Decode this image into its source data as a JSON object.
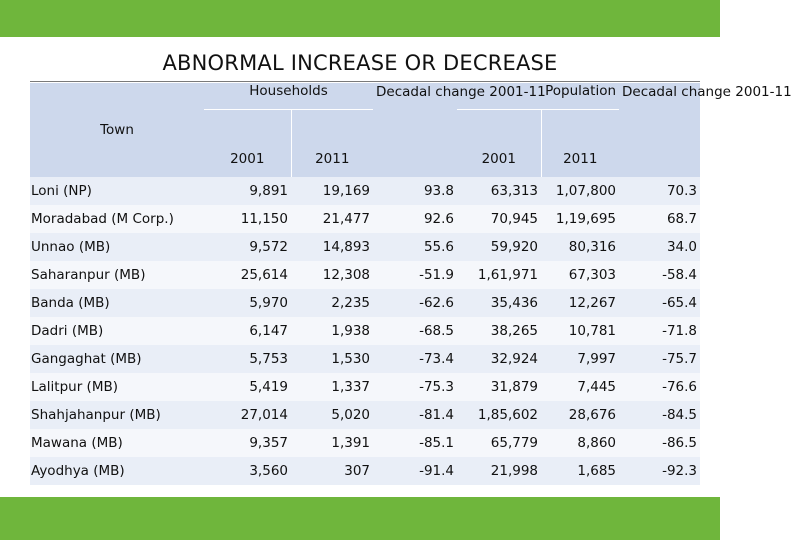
{
  "title": "ABNORMAL INCREASE OR DECREASE",
  "header": {
    "town": "Town",
    "households": "Households",
    "decadal_change": "Decadal change 2001-11",
    "population": "Population",
    "year_2001": "2001",
    "year_2011": "2011"
  },
  "rows": [
    {
      "town": "Loni (NP)",
      "hh_2001": "9,891",
      "hh_2011": "19,169",
      "hh_change": "93.8",
      "pop_2001": "63,313",
      "pop_2011": "1,07,800",
      "pop_change": "70.3"
    },
    {
      "town": "Moradabad (M Corp.)",
      "hh_2001": "11,150",
      "hh_2011": "21,477",
      "hh_change": "92.6",
      "pop_2001": "70,945",
      "pop_2011": "1,19,695",
      "pop_change": "68.7"
    },
    {
      "town": "Unnao (MB)",
      "hh_2001": "9,572",
      "hh_2011": "14,893",
      "hh_change": "55.6",
      "pop_2001": "59,920",
      "pop_2011": "80,316",
      "pop_change": "34.0"
    },
    {
      "town": "Saharanpur (MB)",
      "hh_2001": "25,614",
      "hh_2011": "12,308",
      "hh_change": "-51.9",
      "pop_2001": "1,61,971",
      "pop_2011": "67,303",
      "pop_change": "-58.4"
    },
    {
      "town": "Banda (MB)",
      "hh_2001": "5,970",
      "hh_2011": "2,235",
      "hh_change": "-62.6",
      "pop_2001": "35,436",
      "pop_2011": "12,267",
      "pop_change": "-65.4"
    },
    {
      "town": "Dadri (MB)",
      "hh_2001": "6,147",
      "hh_2011": "1,938",
      "hh_change": "-68.5",
      "pop_2001": "38,265",
      "pop_2011": "10,781",
      "pop_change": "-71.8"
    },
    {
      "town": "Gangaghat (MB)",
      "hh_2001": "5,753",
      "hh_2011": "1,530",
      "hh_change": "-73.4",
      "pop_2001": "32,924",
      "pop_2011": "7,997",
      "pop_change": "-75.7"
    },
    {
      "town": "Lalitpur (MB)",
      "hh_2001": "5,419",
      "hh_2011": "1,337",
      "hh_change": "-75.3",
      "pop_2001": "31,879",
      "pop_2011": "7,445",
      "pop_change": "-76.6"
    },
    {
      "town": "Shahjahanpur (MB)",
      "hh_2001": "27,014",
      "hh_2011": "5,020",
      "hh_change": "-81.4",
      "pop_2001": "1,85,602",
      "pop_2011": "28,676",
      "pop_change": "-84.5"
    },
    {
      "town": "Mawana (MB)",
      "hh_2001": "9,357",
      "hh_2011": "1,391",
      "hh_change": "-85.1",
      "pop_2001": "65,779",
      "pop_2011": "8,860",
      "pop_change": "-86.5"
    },
    {
      "town": "Ayodhya (MB)",
      "hh_2001": "3,560",
      "hh_2011": "307",
      "hh_change": "-91.4",
      "pop_2001": "21,998",
      "pop_2011": "1,685",
      "pop_change": "-92.3"
    }
  ]
}
